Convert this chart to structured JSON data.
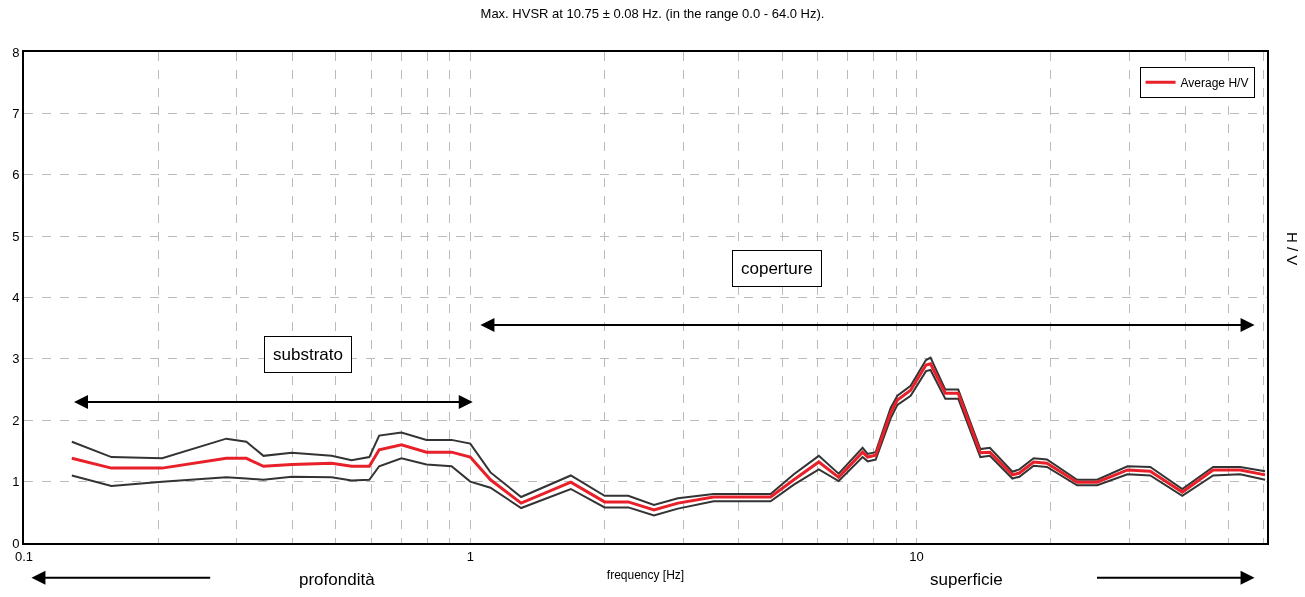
{
  "chart_data": {
    "type": "line",
    "title": "Max. HVSR at 10.75 ± 0.08 Hz. (in the range 0.0 - 64.0 Hz).",
    "xlabel": "frequency [Hz]",
    "ylabel": "H / V",
    "annotations": [
      "substrato",
      "coperture",
      "profondità",
      "superficie"
    ],
    "log": "x",
    "xlim": [
      0.1,
      61
    ],
    "ylim": [
      0,
      8
    ],
    "yticks": [
      0,
      1,
      2,
      3,
      4,
      5,
      6,
      7,
      8
    ],
    "xticks": [
      0.1,
      {
        "value": 0.2,
        "label": null
      },
      {
        "value": 0.3,
        "label": null
      },
      {
        "value": 0.4,
        "label": null
      },
      {
        "value": 0.5,
        "label": null
      },
      {
        "value": 0.6,
        "label": null
      },
      {
        "value": 0.7,
        "label": null
      },
      {
        "value": 0.8,
        "label": null
      },
      {
        "value": 0.9,
        "label": null
      },
      1,
      {
        "value": 2,
        "label": null
      },
      {
        "value": 3,
        "label": null
      },
      {
        "value": 4,
        "label": null
      },
      {
        "value": 5,
        "label": null
      },
      {
        "value": 6,
        "label": null
      },
      {
        "value": 7,
        "label": null
      },
      {
        "value": 8,
        "label": null
      },
      {
        "value": 9,
        "label": null
      },
      10,
      {
        "value": 20,
        "label": null
      },
      {
        "value": 30,
        "label": null
      },
      {
        "value": 40,
        "label": null
      },
      {
        "value": 50,
        "label": null
      },
      {
        "value": 60,
        "label": null
      }
    ],
    "grid": true,
    "legend": "top right",
    "line_style": "solid",
    "marker": "none",
    "series": [
      {
        "name": "Average H/V",
        "color": "#e8202a",
        "x": [
          0.128,
          0.157,
          0.204,
          0.284,
          0.315,
          0.344,
          0.398,
          0.489,
          0.542,
          0.594,
          0.625,
          0.701,
          0.798,
          0.908,
          1.0,
          1.11,
          1.3,
          1.68,
          2.0,
          2.26,
          2.58,
          2.92,
          3.51,
          4.71,
          5.31,
          6.04,
          6.69,
          7.57,
          7.77,
          8.1,
          8.75,
          9.06,
          9.7,
          10.5,
          10.75,
          11.6,
          12.4,
          13.9,
          14.6,
          16.4,
          17.0,
          18.3,
          19.6,
          22.9,
          25.4,
          29.7,
          33.4,
          39.4,
          46.2,
          53.1,
          60.4
        ],
        "values": [
          1.38,
          1.22,
          1.22,
          1.38,
          1.38,
          1.25,
          1.28,
          1.3,
          1.25,
          1.25,
          1.52,
          1.6,
          1.48,
          1.48,
          1.4,
          1.03,
          0.65,
          0.99,
          0.67,
          0.67,
          0.54,
          0.65,
          0.75,
          0.75,
          1.03,
          1.32,
          1.07,
          1.48,
          1.4,
          1.43,
          2.12,
          2.33,
          2.49,
          2.9,
          2.92,
          2.44,
          2.44,
          1.47,
          1.48,
          1.11,
          1.14,
          1.32,
          1.3,
          0.99,
          0.99,
          1.19,
          1.17,
          0.83,
          1.19,
          1.19,
          1.11
        ]
      },
      {
        "color": "#333333",
        "x": [
          0.128,
          0.157,
          0.204,
          0.284,
          0.315,
          0.344,
          0.398,
          0.489,
          0.542,
          0.594,
          0.625,
          0.701,
          0.798,
          0.908,
          1.0,
          1.11,
          1.3,
          1.68,
          2.0,
          2.26,
          2.58,
          2.92,
          3.51,
          4.71,
          5.31,
          6.04,
          6.69,
          7.57,
          7.77,
          8.1,
          8.75,
          9.06,
          9.7,
          10.5,
          10.75,
          11.6,
          12.4,
          13.9,
          14.6,
          16.4,
          17.0,
          18.3,
          19.6,
          22.9,
          25.4,
          29.7,
          33.4,
          39.4,
          46.2,
          53.1,
          60.4
        ],
        "values": [
          1.65,
          1.4,
          1.38,
          1.7,
          1.65,
          1.42,
          1.47,
          1.42,
          1.35,
          1.4,
          1.75,
          1.8,
          1.68,
          1.68,
          1.62,
          1.15,
          0.75,
          1.1,
          0.77,
          0.77,
          0.62,
          0.73,
          0.8,
          0.8,
          1.12,
          1.42,
          1.13,
          1.55,
          1.45,
          1.48,
          2.2,
          2.4,
          2.56,
          2.98,
          3.02,
          2.5,
          2.5,
          1.53,
          1.55,
          1.16,
          1.2,
          1.38,
          1.36,
          1.03,
          1.03,
          1.25,
          1.24,
          0.88,
          1.24,
          1.24,
          1.17
        ]
      },
      {
        "color": "#333333",
        "x": [
          0.128,
          0.157,
          0.204,
          0.284,
          0.315,
          0.344,
          0.398,
          0.489,
          0.542,
          0.594,
          0.625,
          0.701,
          0.798,
          0.908,
          1.0,
          1.11,
          1.3,
          1.68,
          2.0,
          2.26,
          2.58,
          2.92,
          3.51,
          4.71,
          5.31,
          6.04,
          6.69,
          7.57,
          7.77,
          8.1,
          8.75,
          9.06,
          9.7,
          10.5,
          10.75,
          11.6,
          12.4,
          13.9,
          14.6,
          16.4,
          17.0,
          18.3,
          19.6,
          22.9,
          25.4,
          29.7,
          33.4,
          39.4,
          46.2,
          53.1,
          60.4
        ],
        "values": [
          1.1,
          0.93,
          1.0,
          1.07,
          1.05,
          1.03,
          1.08,
          1.07,
          1.02,
          1.03,
          1.25,
          1.38,
          1.28,
          1.25,
          1.0,
          0.9,
          0.57,
          0.88,
          0.58,
          0.58,
          0.45,
          0.56,
          0.68,
          0.68,
          0.95,
          1.2,
          1.01,
          1.4,
          1.33,
          1.36,
          2.03,
          2.25,
          2.4,
          2.8,
          2.82,
          2.35,
          2.35,
          1.4,
          1.42,
          1.05,
          1.08,
          1.26,
          1.24,
          0.94,
          0.94,
          1.12,
          1.1,
          0.77,
          1.1,
          1.12,
          1.03
        ]
      }
    ]
  }
}
